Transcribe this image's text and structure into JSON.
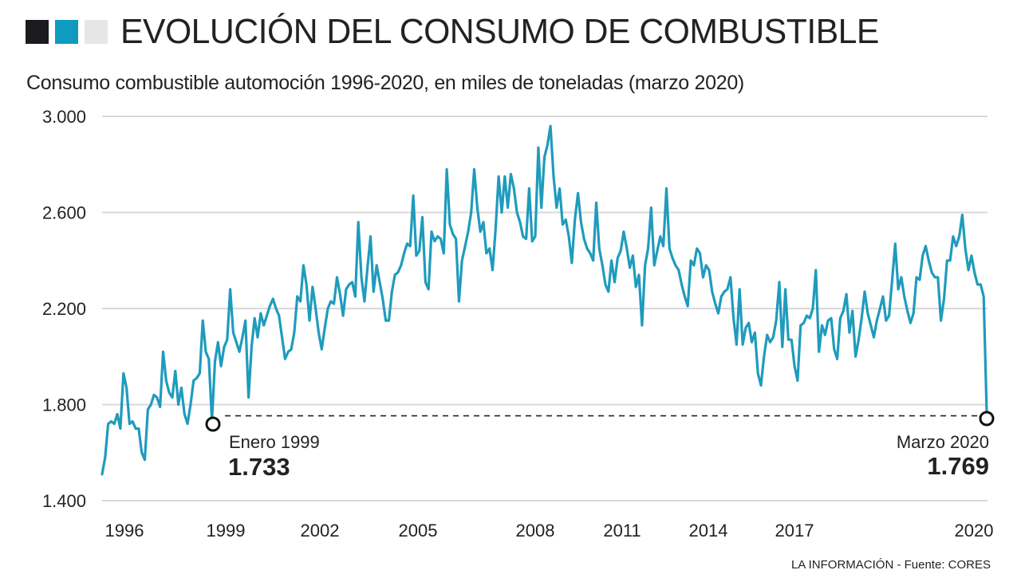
{
  "header": {
    "title": "EVOLUCIÓN DEL CONSUMO DE COMBUSTIBLE",
    "squares": [
      {
        "name": "dark",
        "color": "#1c1a1f"
      },
      {
        "name": "blue",
        "color": "#0f9bbf"
      },
      {
        "name": "light",
        "color": "#e6e6e6"
      }
    ]
  },
  "subtitle": "Consumo combustible automoción 1996-2020, en miles de toneladas (marzo 2020)",
  "footer": "LA INFORMACIÓN - Fuente: CORES",
  "colors": {
    "line": "#1f9bbd",
    "grid": "#d9d9d9",
    "text": "#222222",
    "marker": "#111111"
  },
  "chart_data": {
    "type": "line",
    "title": "EVOLUCIÓN DEL CONSUMO DE COMBUSTIBLE",
    "subtitle": "Consumo combustible automoción 1996-2020, en miles de toneladas (marzo 2020)",
    "xlabel": "",
    "ylabel": "miles de toneladas",
    "ylim": [
      1400,
      3000
    ],
    "yticks": [
      3000,
      2600,
      2200,
      1800,
      1400
    ],
    "ytick_labels": [
      "3.000",
      "2.600",
      "2.200",
      "1.800",
      "1.400"
    ],
    "xticks": [
      1996,
      1999,
      2002,
      2005,
      2008,
      2011,
      2014,
      2017,
      2020
    ],
    "xtick_labels": [
      "1996",
      "1999",
      "2002",
      "2005",
      "2008",
      "2011",
      "2014",
      "2017",
      "2020"
    ],
    "grid": true,
    "legend": "none",
    "frequency": "monthly",
    "start": "1996-01",
    "end": "2020-03",
    "series": [
      {
        "name": "Consumo combustible automoción",
        "values_by_year": {
          "1996": [
            1510,
            1580,
            1720,
            1730,
            1720,
            1760,
            1700,
            1930,
            1870,
            1720,
            1730,
            1700
          ],
          "1997": [
            1700,
            1600,
            1570,
            1780,
            1800,
            1840,
            1830,
            1790,
            2020,
            1900,
            1850,
            1830
          ],
          "1998": [
            1940,
            1800,
            1870,
            1760,
            1720,
            1800,
            1900,
            1910,
            1930,
            2150,
            2020,
            1990
          ],
          "1999": [
            1733,
            1980,
            2060,
            1960,
            2040,
            2070,
            2280,
            2100,
            2060,
            2020,
            2080,
            2150
          ],
          "2000": [
            1830,
            2040,
            2160,
            2080,
            2180,
            2130,
            2170,
            2210,
            2240,
            2200,
            2170,
            2080
          ],
          "2001": [
            1990,
            2020,
            2030,
            2100,
            2250,
            2230,
            2380,
            2300,
            2150,
            2290,
            2200,
            2100
          ],
          "2002": [
            2030,
            2120,
            2200,
            2230,
            2220,
            2330,
            2260,
            2170,
            2280,
            2300,
            2310,
            2250
          ],
          "2003": [
            2560,
            2330,
            2230,
            2370,
            2500,
            2270,
            2380,
            2310,
            2240,
            2150,
            2150,
            2270
          ],
          "2004": [
            2340,
            2350,
            2380,
            2430,
            2470,
            2460,
            2670,
            2420,
            2440,
            2580,
            2310,
            2280
          ],
          "2005": [
            2520,
            2480,
            2500,
            2490,
            2430,
            2780,
            2550,
            2510,
            2490,
            2230,
            2400,
            2460
          ],
          "2006": [
            2520,
            2600,
            2780,
            2620,
            2520,
            2560,
            2430,
            2450,
            2360,
            2530,
            2750,
            2600
          ],
          "2007": [
            2750,
            2620,
            2760,
            2700,
            2600,
            2560,
            2500,
            2490,
            2700,
            2480,
            2500,
            2870
          ],
          "2008": [
            2620,
            2830,
            2880,
            2960,
            2750,
            2620,
            2700,
            2550,
            2570,
            2500,
            2390,
            2570
          ],
          "2009": [
            2680,
            2560,
            2490,
            2450,
            2430,
            2400,
            2640,
            2450,
            2380,
            2300,
            2270,
            2400
          ],
          "2010": [
            2310,
            2410,
            2440,
            2520,
            2450,
            2370,
            2420,
            2290,
            2340,
            2130,
            2380,
            2450
          ],
          "2011": [
            2620,
            2380,
            2440,
            2500,
            2460,
            2700,
            2450,
            2410,
            2380,
            2360,
            2300,
            2250
          ],
          "2012": [
            2210,
            2400,
            2380,
            2450,
            2430,
            2330,
            2380,
            2360,
            2270,
            2220,
            2180,
            2250
          ],
          "2013": [
            2270,
            2280,
            2330,
            2160,
            2050,
            2280,
            2050,
            2120,
            2140,
            2060,
            2100,
            1930
          ],
          "2014": [
            1880,
            2000,
            2090,
            2060,
            2080,
            2150,
            2310,
            2040,
            2280,
            2070,
            2070,
            1960
          ],
          "2015": [
            1900,
            2130,
            2140,
            2170,
            2160,
            2200,
            2360,
            2020,
            2130,
            2090,
            2150,
            2160
          ],
          "2016": [
            2030,
            1990,
            2160,
            2190,
            2260,
            2100,
            2190,
            2000,
            2070,
            2160,
            2270,
            2180
          ],
          "2017": [
            2130,
            2080,
            2150,
            2200,
            2250,
            2150,
            2170,
            2320,
            2470,
            2280,
            2330,
            2250
          ],
          "2018": [
            2190,
            2140,
            2180,
            2330,
            2320,
            2420,
            2460,
            2400,
            2350,
            2330,
            2330,
            2150
          ],
          "2019": [
            2240,
            2400,
            2400,
            2500,
            2460,
            2500,
            2590,
            2450,
            2360,
            2420,
            2350,
            2300
          ],
          "2020": [
            2300,
            2250,
            1769
          ]
        }
      }
    ],
    "annotations": [
      {
        "label": "Enero 1999",
        "value_label": "1.733",
        "date": "1999-01",
        "value": 1733
      },
      {
        "label": "Marzo 2020",
        "value_label": "1.769",
        "date": "2020-03",
        "value": 1769
      }
    ],
    "reference_line": {
      "style": "dashed",
      "value": 1750
    }
  }
}
